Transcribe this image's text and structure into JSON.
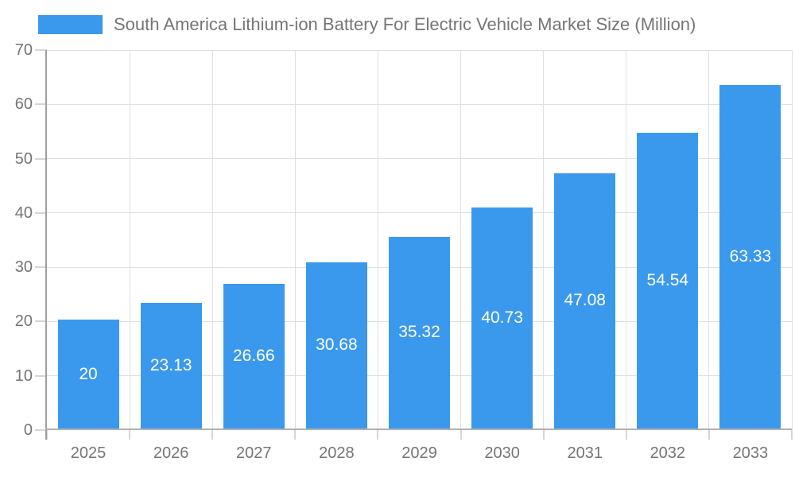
{
  "chart_data": {
    "type": "bar",
    "title": "South America Lithium-ion Battery For Electric Vehicle Market Size (Million)",
    "categories": [
      "2025",
      "2026",
      "2027",
      "2028",
      "2029",
      "2030",
      "2031",
      "2032",
      "2033"
    ],
    "values": [
      20,
      23.13,
      26.66,
      30.68,
      35.32,
      40.73,
      47.08,
      54.54,
      63.33
    ],
    "xlabel": "",
    "ylabel": "",
    "ylim": [
      0,
      70
    ],
    "yticks": [
      0,
      10,
      20,
      30,
      40,
      50,
      60,
      70
    ],
    "grid": true,
    "legend_position": "top-left",
    "colors": {
      "bar": "#3b99ed",
      "bar_value_text": "#ffffff",
      "axis_text": "#757575",
      "grid": "#e0e0e0",
      "tick": "#d6d6d6",
      "y_axis_line": "#9e9e9e",
      "x_axis_line": "#b0b0b0",
      "background": "#ffffff"
    }
  }
}
